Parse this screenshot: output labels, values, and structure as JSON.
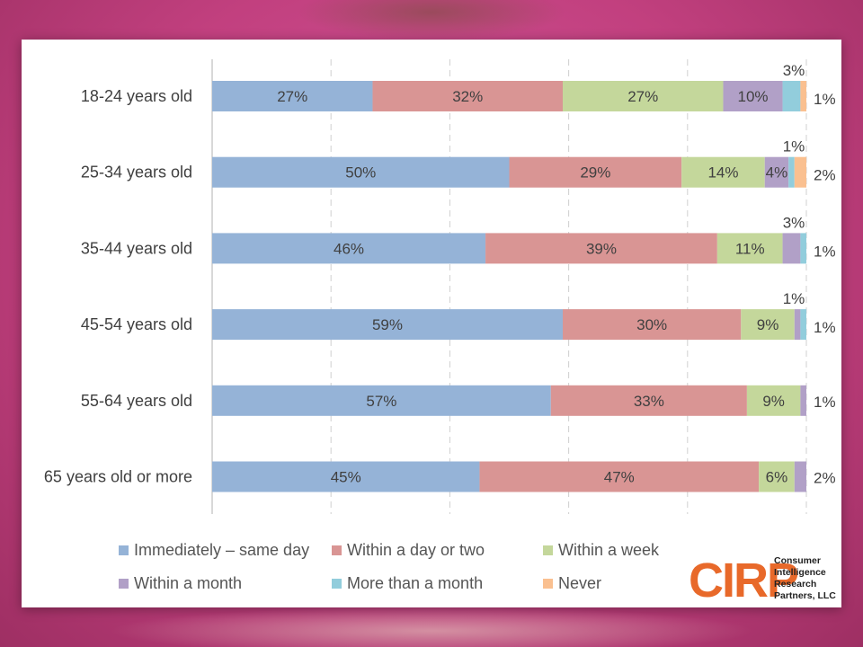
{
  "chart_data": {
    "type": "bar",
    "orientation": "horizontal",
    "stacked": true,
    "percent": true,
    "categories": [
      "18-24 years old",
      "25-34 years old",
      "35-44 years old",
      "45-54 years old",
      "55-64 years old",
      "65 years old or more"
    ],
    "series": [
      {
        "name": "Immediately – same day",
        "color": "#95b3d7",
        "values": [
          27,
          50,
          46,
          59,
          57,
          45
        ]
      },
      {
        "name": "Within a day or two",
        "color": "#d99594",
        "values": [
          32,
          29,
          39,
          30,
          33,
          47
        ]
      },
      {
        "name": "Within a week",
        "color": "#c4d79b",
        "values": [
          27,
          14,
          11,
          9,
          9,
          6
        ]
      },
      {
        "name": "Within a month",
        "color": "#b1a0c7",
        "values": [
          10,
          4,
          3,
          1,
          1,
          2
        ]
      },
      {
        "name": "More than a month",
        "color": "#92cddc",
        "values": [
          3,
          1,
          1,
          1,
          0,
          0
        ]
      },
      {
        "name": "Never",
        "color": "#fac090",
        "values": [
          1,
          2,
          0,
          0,
          0,
          0
        ]
      }
    ],
    "data_labels": [
      [
        "27%",
        "32%",
        "27%",
        "10%",
        "3%",
        "1%"
      ],
      [
        "50%",
        "29%",
        "14%",
        "4%",
        "1%",
        "2%"
      ],
      [
        "46%",
        "39%",
        "11%",
        "3%",
        "1%",
        ""
      ],
      [
        "59%",
        "30%",
        "9%",
        "1%",
        "1%",
        ""
      ],
      [
        "57%",
        "33%",
        "9%",
        "1%",
        "",
        ""
      ],
      [
        "45%",
        "47%",
        "6%",
        "2%",
        "",
        ""
      ]
    ],
    "xlim": [
      0,
      100
    ],
    "grid": true,
    "legend": "bottom"
  },
  "logo": {
    "mark": "CIRP",
    "lines": [
      "Consumer",
      "Intelligence",
      "Research",
      "Partners, LLC"
    ]
  }
}
